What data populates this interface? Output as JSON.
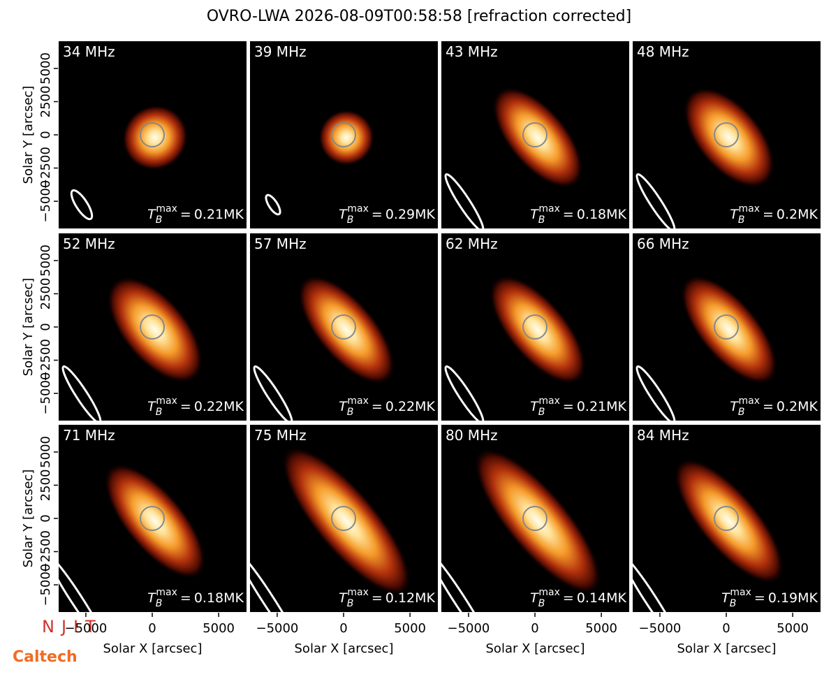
{
  "title": "OVRO-LWA 2026-08-09T00:58:58 [refraction corrected]",
  "x_label": "Solar X [arcsec]",
  "y_label": "Solar Y [arcsec]",
  "xlim": [
    -7100,
    7150
  ],
  "ylim": [
    -7100,
    7100
  ],
  "xticks": [
    {
      "value": -5000,
      "label": "−5000"
    },
    0,
    5000
  ],
  "yticks": [
    {
      "value": -5000,
      "label": "−5000"
    },
    {
      "value": -2500,
      "label": "−2500"
    },
    0,
    2500,
    5000
  ],
  "tb_label": {
    "base": "T",
    "sub": "B",
    "sup": "max",
    "eq": "="
  },
  "panels": [
    {
      "freq": "34 MHz",
      "tb": "0.21MK"
    },
    {
      "freq": "39 MHz",
      "tb": "0.29MK"
    },
    {
      "freq": "43 MHz",
      "tb": "0.18MK"
    },
    {
      "freq": "48 MHz",
      "tb": "0.2MK"
    },
    {
      "freq": "52 MHz",
      "tb": "0.22MK"
    },
    {
      "freq": "57 MHz",
      "tb": "0.22MK"
    },
    {
      "freq": "62 MHz",
      "tb": "0.21MK"
    },
    {
      "freq": "66 MHz",
      "tb": "0.2MK"
    },
    {
      "freq": "71 MHz",
      "tb": "0.18MK"
    },
    {
      "freq": "75 MHz",
      "tb": "0.12MK"
    },
    {
      "freq": "80 MHz",
      "tb": "0.14MK"
    },
    {
      "freq": "84 MHz",
      "tb": "0.19MK"
    }
  ],
  "logos": [
    "NJIT",
    "Caltech"
  ]
}
